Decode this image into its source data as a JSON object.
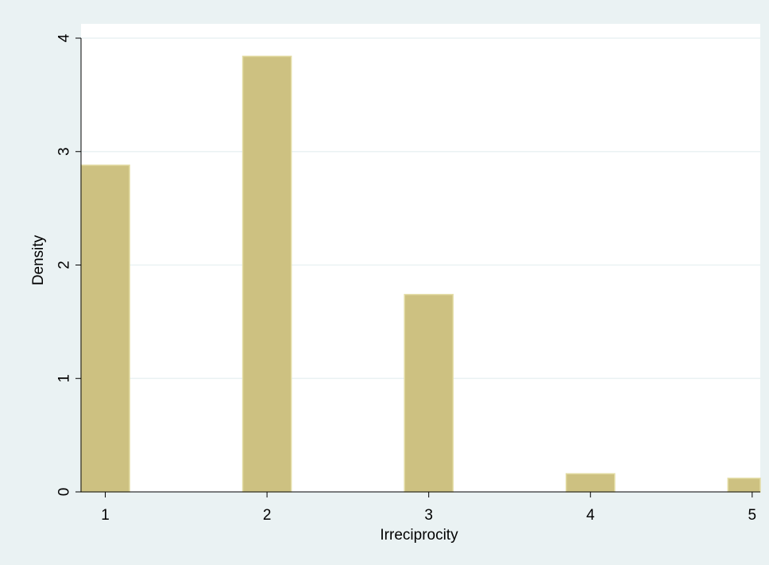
{
  "colors": {
    "outer_background": "#eaf2f3",
    "plot_background": "#ffffff",
    "bar_fill": "#cdc181",
    "bar_stroke": "#e3dca4",
    "gridline": "#eaf2f3",
    "axis": "#000000"
  },
  "chart_data": {
    "type": "bar",
    "subtype": "histogram",
    "title": "",
    "xlabel": "Irreciprocity",
    "ylabel": "Density",
    "categories": [
      "1",
      "2",
      "3",
      "4",
      "5"
    ],
    "x": [
      1,
      2,
      3,
      4,
      5
    ],
    "values": [
      2.88,
      3.84,
      1.74,
      0.16,
      0.12
    ],
    "xlim": [
      0.85,
      5.05
    ],
    "ylim": [
      0,
      4
    ],
    "x_ticks": [
      1,
      2,
      3,
      4,
      5
    ],
    "x_tick_labels": [
      "1",
      "2",
      "3",
      "4",
      "5"
    ],
    "y_ticks": [
      0,
      1,
      2,
      3,
      4
    ],
    "y_tick_labels": [
      "0",
      "1",
      "2",
      "3",
      "4"
    ],
    "bar_width": 0.3,
    "grid": "horizontal",
    "legend": "none"
  }
}
